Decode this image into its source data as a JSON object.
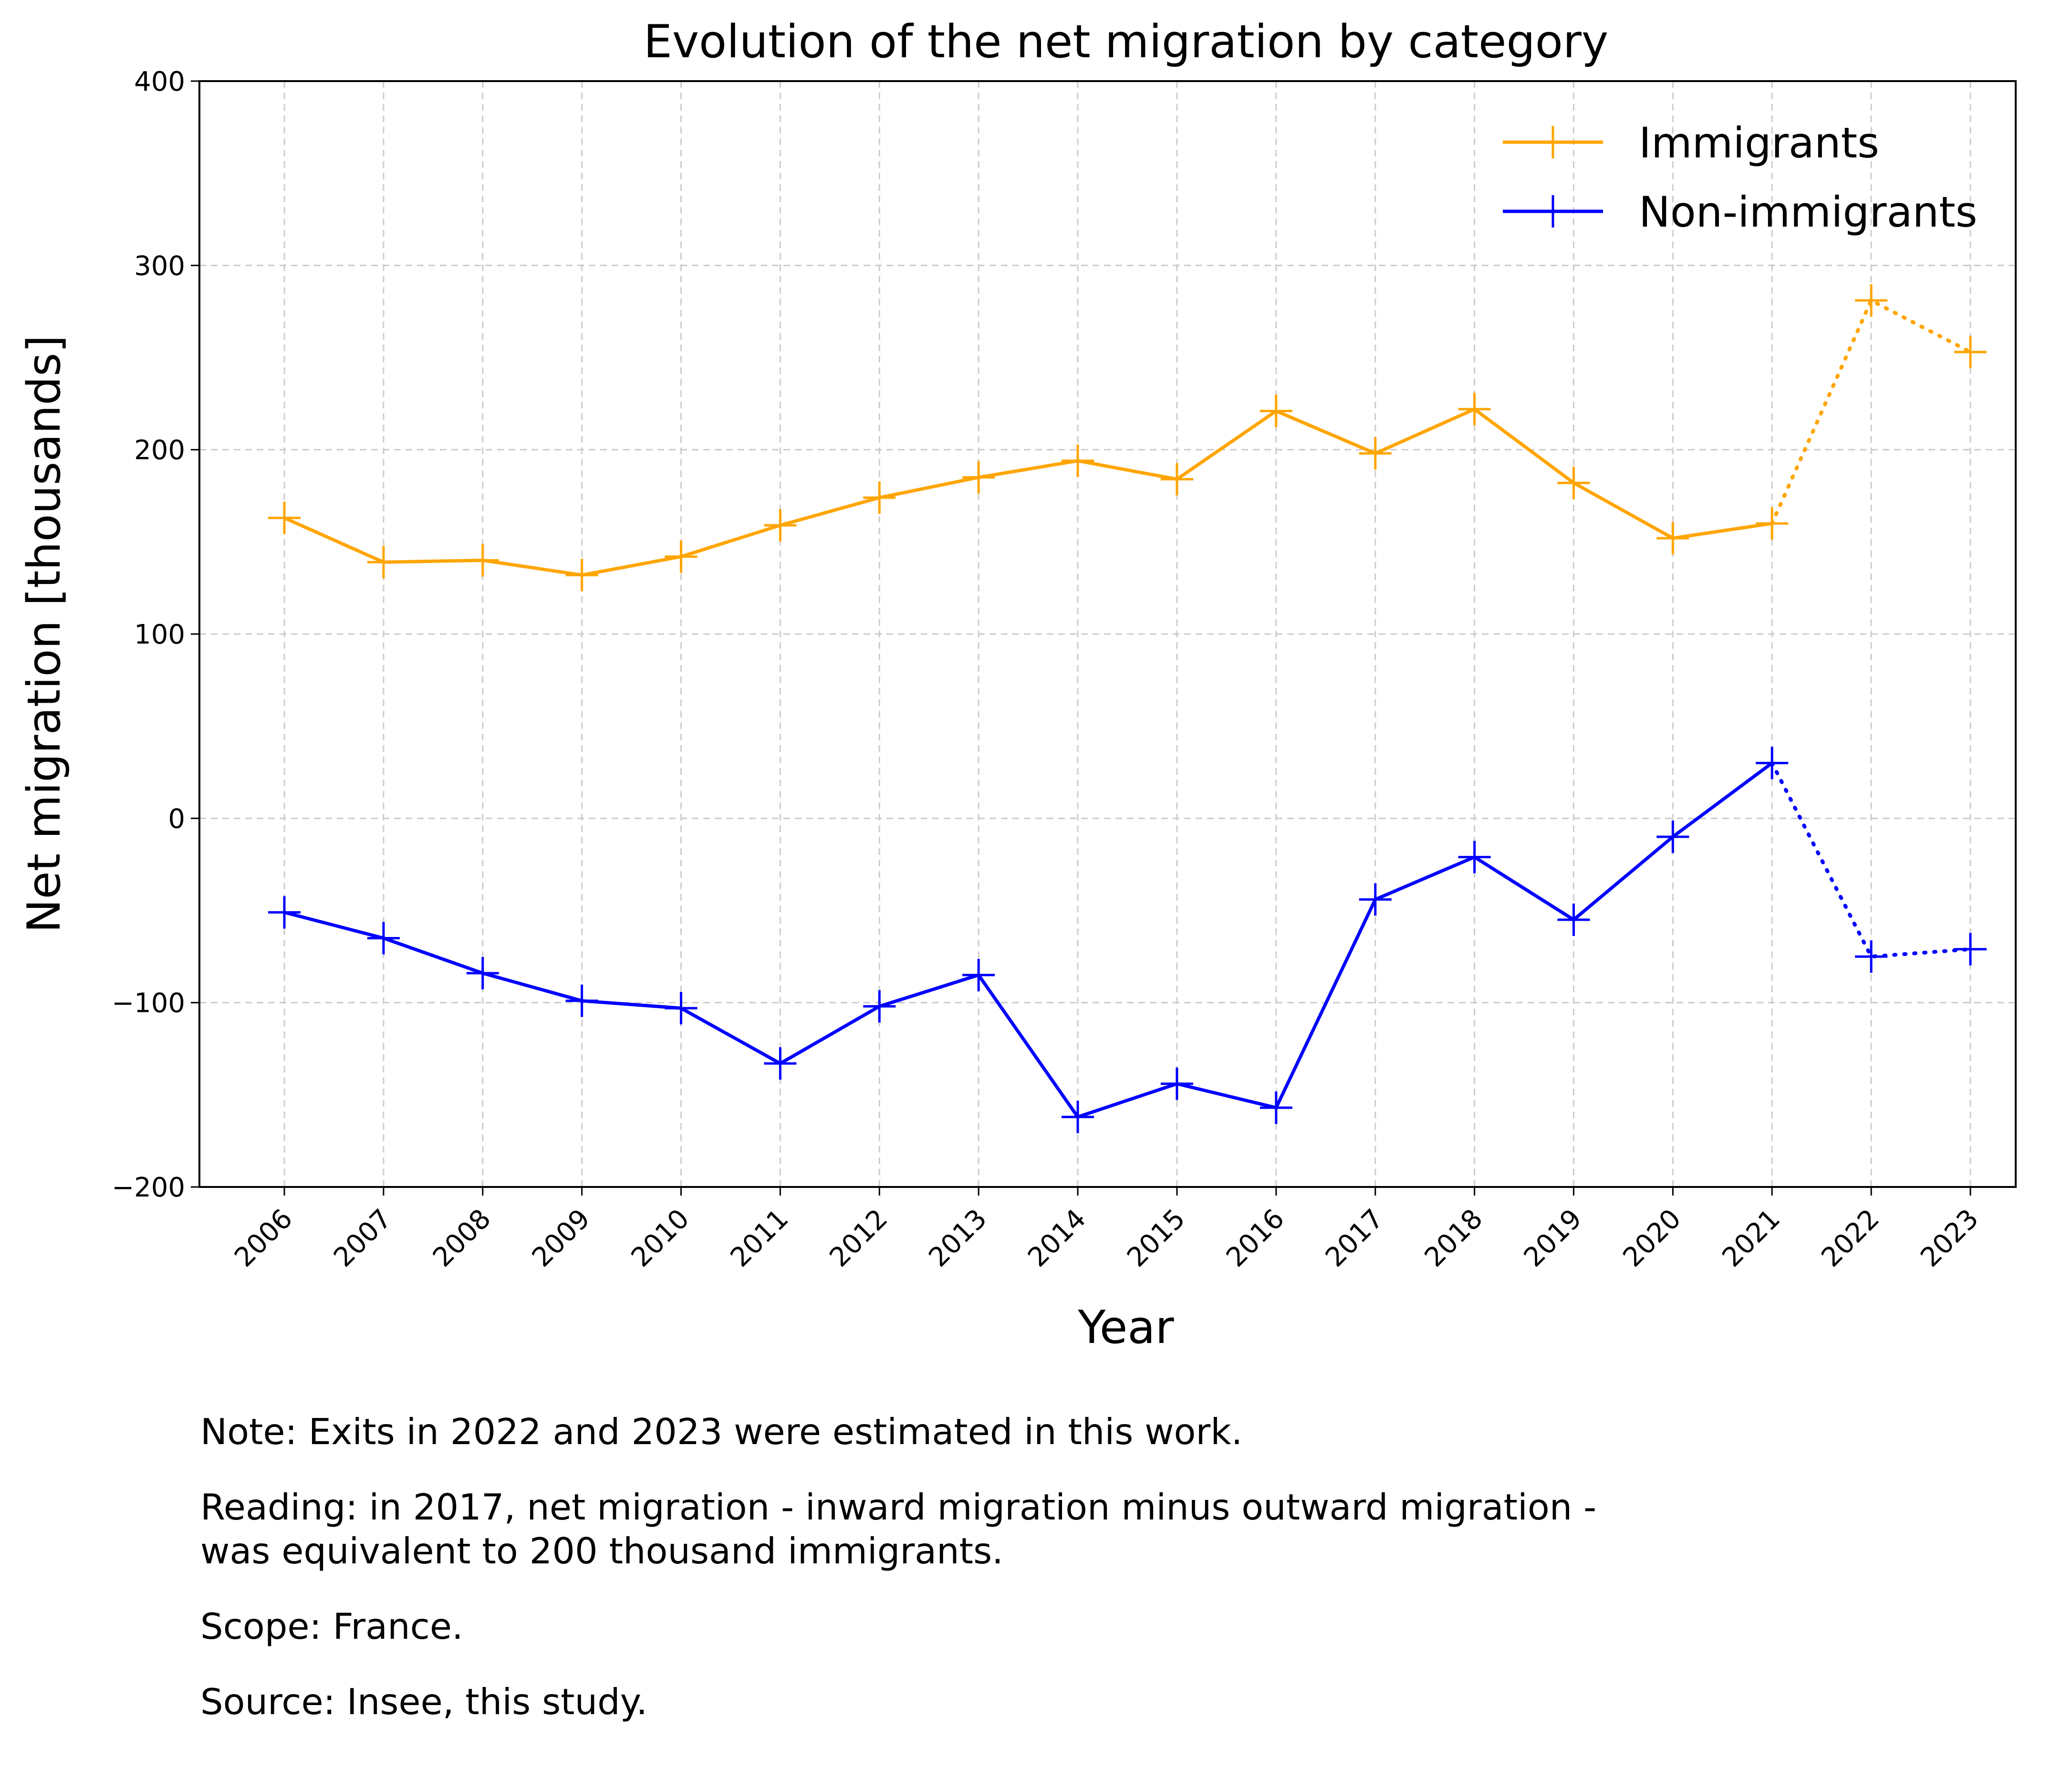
{
  "chart_data": {
    "type": "line",
    "title": "Evolution of the net migration by category",
    "xlabel": "Year",
    "ylabel": "Net migration [thousands]",
    "x": [
      2006,
      2007,
      2008,
      2009,
      2010,
      2011,
      2012,
      2013,
      2014,
      2015,
      2016,
      2017,
      2018,
      2019,
      2020,
      2021,
      2022,
      2023
    ],
    "xticks": [
      "2006",
      "2007",
      "2008",
      "2009",
      "2010",
      "2011",
      "2012",
      "2013",
      "2014",
      "2015",
      "2016",
      "2017",
      "2018",
      "2019",
      "2020",
      "2021",
      "2022",
      "2023"
    ],
    "ylim": [
      -200,
      400
    ],
    "yticks": [
      -200,
      -100,
      0,
      100,
      200,
      300,
      400
    ],
    "ytick_labels": [
      "−200",
      "−100",
      "0",
      "100",
      "200",
      "300",
      "400"
    ],
    "grid": true,
    "legend_position": "top-right",
    "estimated_from_year": 2021,
    "series": [
      {
        "name": "Immigrants",
        "color": "#FFA500",
        "marker": "plus",
        "values": [
          163,
          139,
          140,
          132,
          142,
          159,
          174,
          185,
          194,
          184,
          221,
          198,
          222,
          182,
          152,
          160,
          281,
          253
        ]
      },
      {
        "name": "Non-immigrants",
        "color": "#0000FF",
        "marker": "plus",
        "values": [
          -51,
          -65,
          -84,
          -99,
          -103,
          -133,
          -102,
          -85,
          -162,
          -144,
          -157,
          -44,
          -21,
          -55,
          -10,
          30,
          -75,
          -71
        ]
      }
    ]
  },
  "notes": {
    "note": "Note: Exits in 2022 and 2023 were estimated in this work.",
    "reading_line1": "Reading: in 2017, net migration - inward migration minus outward migration -",
    "reading_line2": "was equivalent to 200 thousand immigrants.",
    "scope": "Scope: France.",
    "source": "Source: Insee, this study."
  }
}
